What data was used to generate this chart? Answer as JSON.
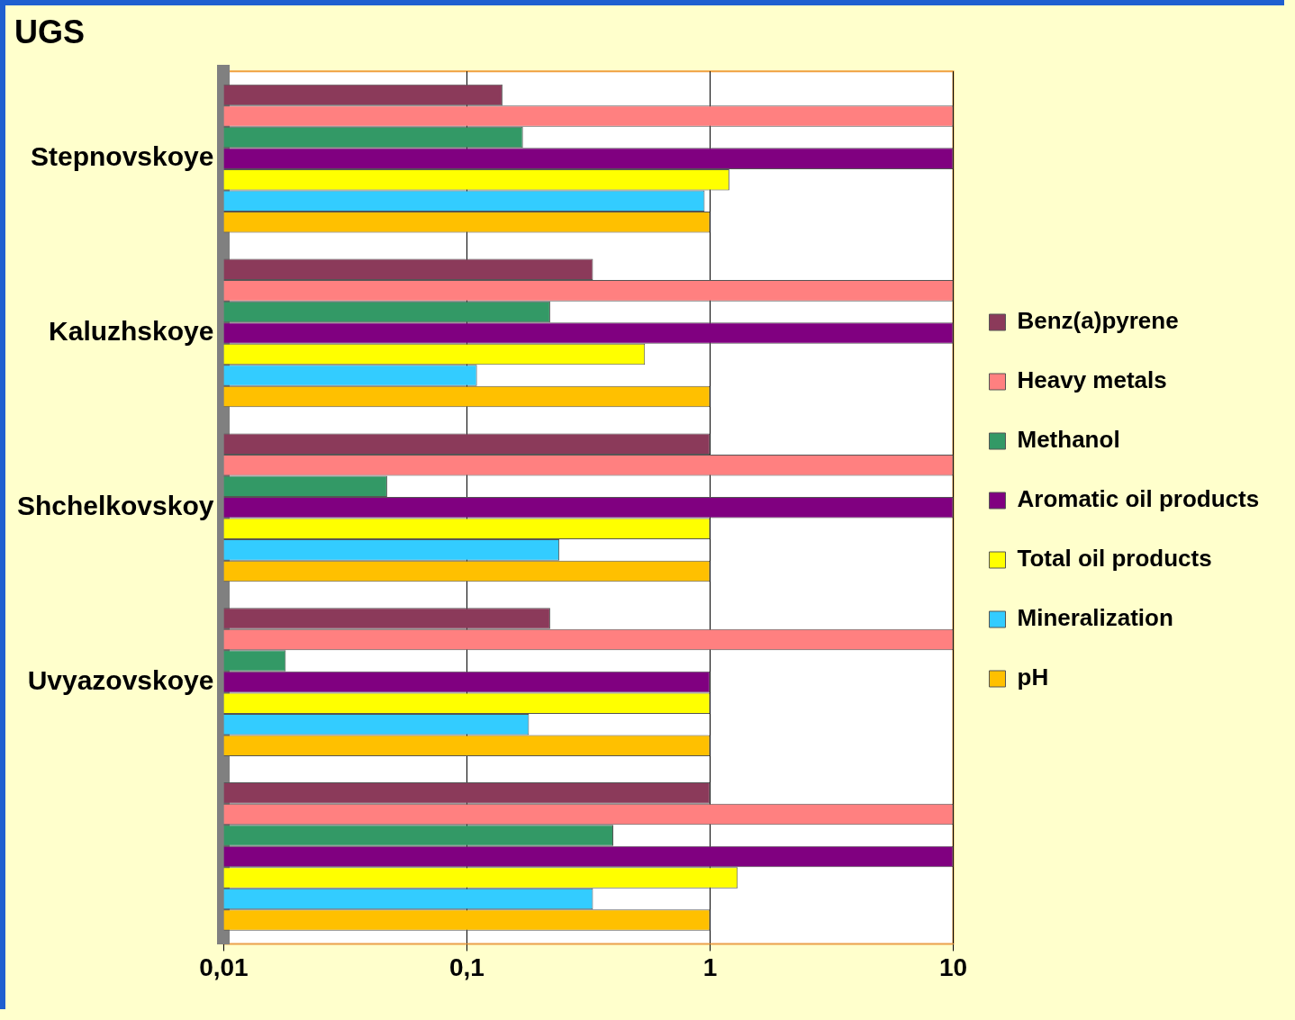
{
  "chart_data": {
    "type": "bar",
    "orientation": "horizontal",
    "title": "UGS",
    "log": "x",
    "grid": "x",
    "legend": "right",
    "categories": [
      "Stepnovskoye",
      "Kaluzhskoye",
      "Shchelkovskoy",
      "Uvyazovskoye",
      null
    ],
    "xlim": [
      0.01,
      10
    ],
    "xticks": [
      {
        "value": 0.01,
        "label": "0,01"
      },
      {
        "value": 0.1,
        "label": "0,1"
      },
      1,
      10
    ],
    "series": [
      {
        "name": "Benz(a)pyrene",
        "color": "#8b3a5a",
        "values": [
          0.14,
          0.33,
          1,
          0.22,
          1
        ]
      },
      {
        "name": "Heavy metals",
        "color": "#ff8080",
        "values": [
          10,
          10,
          10,
          10,
          10
        ]
      },
      {
        "name": "Methanol",
        "color": "#339966",
        "values": [
          0.17,
          0.22,
          0.047,
          0.018,
          0.4
        ]
      },
      {
        "name": "Aromatic oil products",
        "color": "#800080",
        "values": [
          10,
          10,
          10,
          1,
          10
        ]
      },
      {
        "name": "Total oil products",
        "color": "#ffff00",
        "values": [
          1.2,
          0.54,
          1,
          1,
          1.3
        ]
      },
      {
        "name": "Mineralization",
        "color": "#33ccff",
        "values": [
          0.95,
          0.11,
          0.24,
          0.18,
          0.33
        ]
      },
      {
        "name": "pH",
        "color": "#ffc000",
        "values": [
          1,
          1,
          1,
          1,
          1
        ]
      }
    ]
  }
}
